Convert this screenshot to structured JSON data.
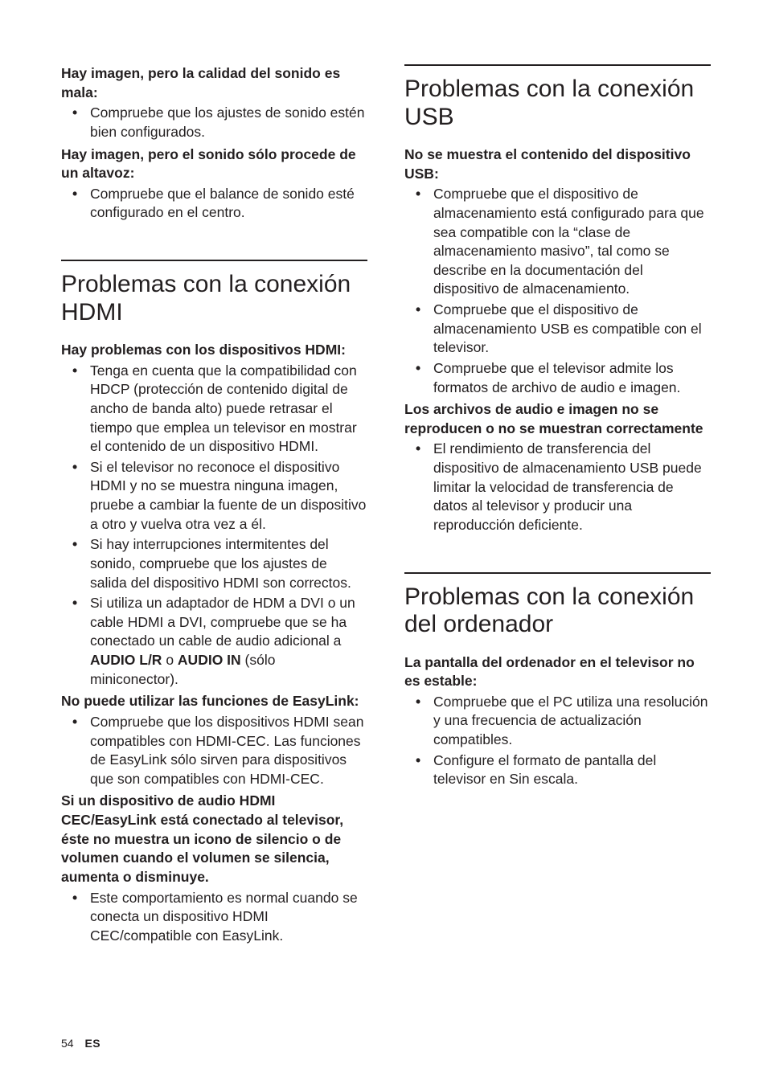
{
  "page": {
    "number": "54",
    "lang": "ES"
  },
  "left": {
    "blk1": {
      "h": "Hay imagen, pero la calidad del sonido es mala:",
      "items": [
        "Compruebe que los ajustes de sonido estén bien configurados."
      ]
    },
    "blk2": {
      "h": "Hay imagen, pero el sonido sólo procede de un altavoz:",
      "items": [
        "Compruebe que el balance de sonido esté configurado en el centro."
      ]
    },
    "sec1": {
      "title": "Problemas con la conexión HDMI",
      "b1": {
        "h": "Hay problemas con los dispositivos HDMI:",
        "items": [
          "Tenga en cuenta que la compatibilidad con HDCP (protección de contenido digital de ancho de banda alto) puede retrasar el tiempo que emplea un televisor en mostrar el contenido de un dispositivo HDMI.",
          "Si el televisor no reconoce el dispositivo HDMI y no se muestra ninguna imagen, pruebe a cambiar la fuente de un dispositivo a otro y vuelva otra vez a él.",
          "Si hay interrupciones intermitentes del sonido, compruebe que los ajustes de salida del dispositivo HDMI son correctos."
        ],
        "item4_pre": "Si utiliza un adaptador de HDM a DVI o un cable HDMI a DVI, compruebe que se ha conectado un cable de audio adicional a ",
        "item4_b1": "AUDIO L/R",
        "item4_mid": " o ",
        "item4_b2": "AUDIO IN",
        "item4_post": " (sólo miniconector)."
      },
      "b2": {
        "h": "No puede utilizar las funciones de EasyLink:",
        "items": [
          "Compruebe que los dispositivos HDMI sean compatibles con HDMI-CEC. Las funciones de EasyLink sólo sirven para dispositivos que son compatibles con HDMI-CEC."
        ]
      },
      "b3": {
        "h": "Si un dispositivo de audio HDMI CEC/EasyLink está conectado al televisor, éste no muestra un icono de silencio o de volumen cuando el volumen se silencia, aumenta o disminuye.",
        "items": [
          "Este comportamiento es normal cuando se conecta un dispositivo HDMI CEC/compatible con EasyLink."
        ]
      }
    }
  },
  "right": {
    "sec1": {
      "title": "Problemas con la conexión USB",
      "b1": {
        "h": "No se muestra el contenido del dispositivo USB:",
        "items": [
          "Compruebe que el dispositivo de almacenamiento está configurado para que sea compatible con la “clase de almacenamiento masivo”, tal como se describe en la documentación del dispositivo de almacenamiento.",
          "Compruebe que el dispositivo de almacenamiento USB es compatible con el televisor.",
          "Compruebe que el televisor admite los formatos de archivo de audio e imagen."
        ]
      },
      "b2": {
        "h": "Los archivos de audio e imagen no se reproducen o no se muestran correctamente",
        "items": [
          "El rendimiento de transferencia del dispositivo de almacenamiento USB puede limitar la velocidad de transferencia de datos al televisor y producir una reproducción deficiente."
        ]
      }
    },
    "sec2": {
      "title": "Problemas con la conexión del ordenador",
      "b1": {
        "h": "La pantalla del ordenador en el televisor no es estable:",
        "items": [
          "Compruebe que el PC utiliza una resolución y una frecuencia de actualización compatibles.",
          "Configure el formato de pantalla del televisor en Sin escala."
        ]
      }
    }
  }
}
